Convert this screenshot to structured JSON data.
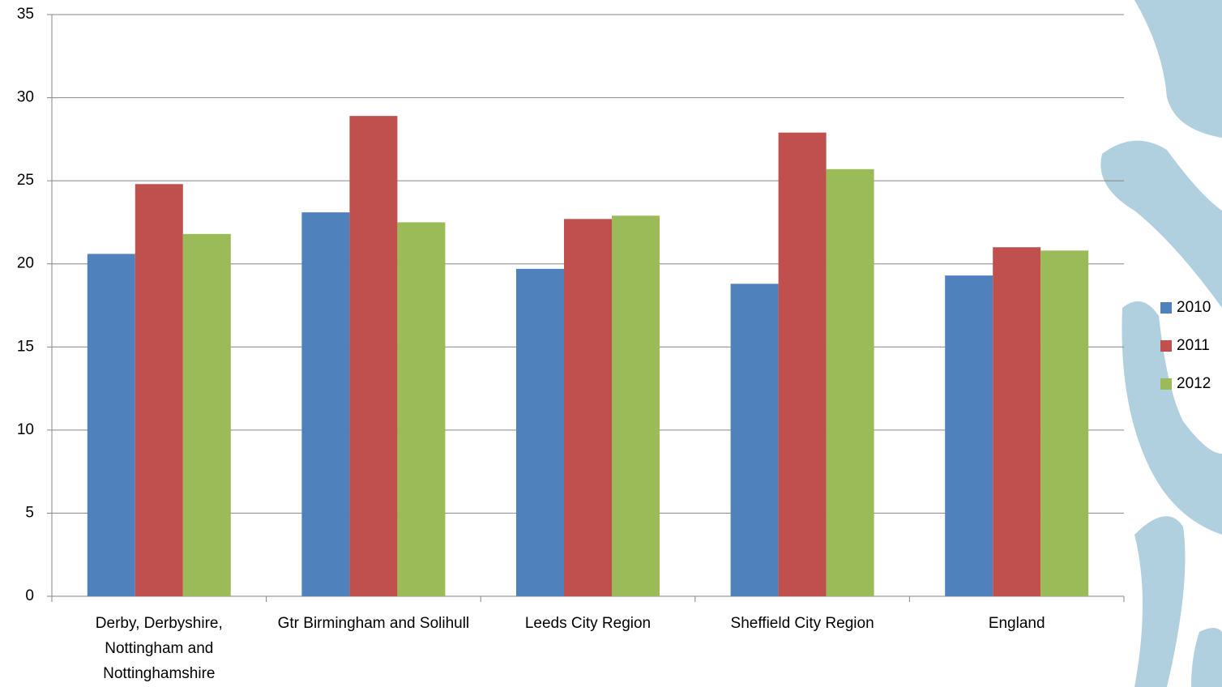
{
  "chart_data": {
    "type": "bar",
    "categories": [
      "Derby, Derbyshire, Nottingham and Nottinghamshire",
      "Gtr Birmingham and Solihull",
      "Leeds City Region",
      "Sheffield City Region",
      "England"
    ],
    "series": [
      {
        "name": "2010",
        "color": "#4f81bd",
        "values": [
          20.6,
          23.1,
          19.7,
          18.8,
          19.3
        ]
      },
      {
        "name": "2011",
        "color": "#c0504d",
        "values": [
          24.8,
          28.9,
          22.7,
          27.9,
          21.0
        ]
      },
      {
        "name": "2012",
        "color": "#9bbb59",
        "values": [
          21.8,
          22.5,
          22.9,
          25.7,
          20.8
        ]
      }
    ],
    "ylim": [
      0,
      35
    ],
    "yticks": [
      0,
      5,
      10,
      15,
      20,
      25,
      30,
      35
    ],
    "grid": true,
    "legend": "right"
  }
}
